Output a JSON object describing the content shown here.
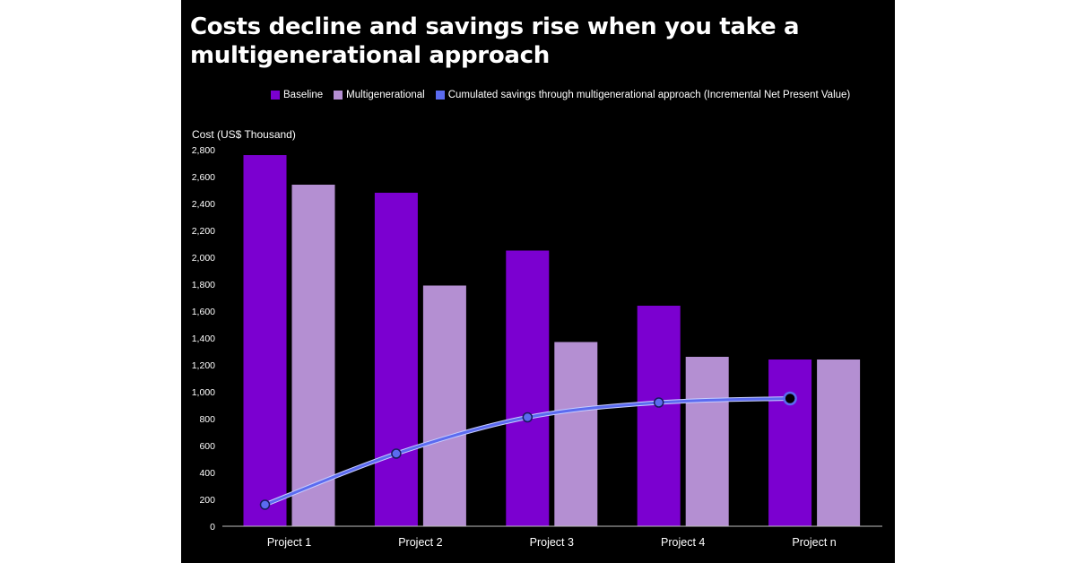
{
  "title": "Costs decline and savings rise when you take a multigenerational approach",
  "colors": {
    "background": "#000000",
    "baseline": "#7b00d0",
    "multigenerational": "#b48fd2",
    "savings_line": "#5b6bf0",
    "text": "#ffffff"
  },
  "chart_data": {
    "type": "bar",
    "title": "Costs decline and savings rise when you take a multigenerational approach",
    "ylabel": "Cost (US$ Thousand)",
    "xlabel": "",
    "categories": [
      "Project 1",
      "Project 2",
      "Project 3",
      "Project 4",
      "Project n"
    ],
    "ylim": [
      0,
      2800
    ],
    "yticks": [
      "0",
      "200",
      "400",
      "600",
      "800",
      "1,000",
      "1,200",
      "1,400",
      "1,600",
      "1,800",
      "2,000",
      "2,200",
      "2,400",
      "2,600",
      "2,800"
    ],
    "ytick_values": [
      0,
      200,
      400,
      600,
      800,
      1000,
      1200,
      1400,
      1600,
      1800,
      2000,
      2200,
      2400,
      2600,
      2800
    ],
    "grid": false,
    "legend_position": "top",
    "series": [
      {
        "name": "Baseline",
        "type": "bar",
        "values": [
          2760,
          2480,
          2050,
          1640,
          1240
        ]
      },
      {
        "name": "Multigenerational",
        "type": "bar",
        "values": [
          2540,
          1790,
          1370,
          1260,
          1240
        ]
      },
      {
        "name": "Cumulated savings through multigenerational approach (Incremental Net Present Value)",
        "type": "line",
        "values": [
          160,
          540,
          810,
          920,
          950
        ]
      }
    ]
  }
}
